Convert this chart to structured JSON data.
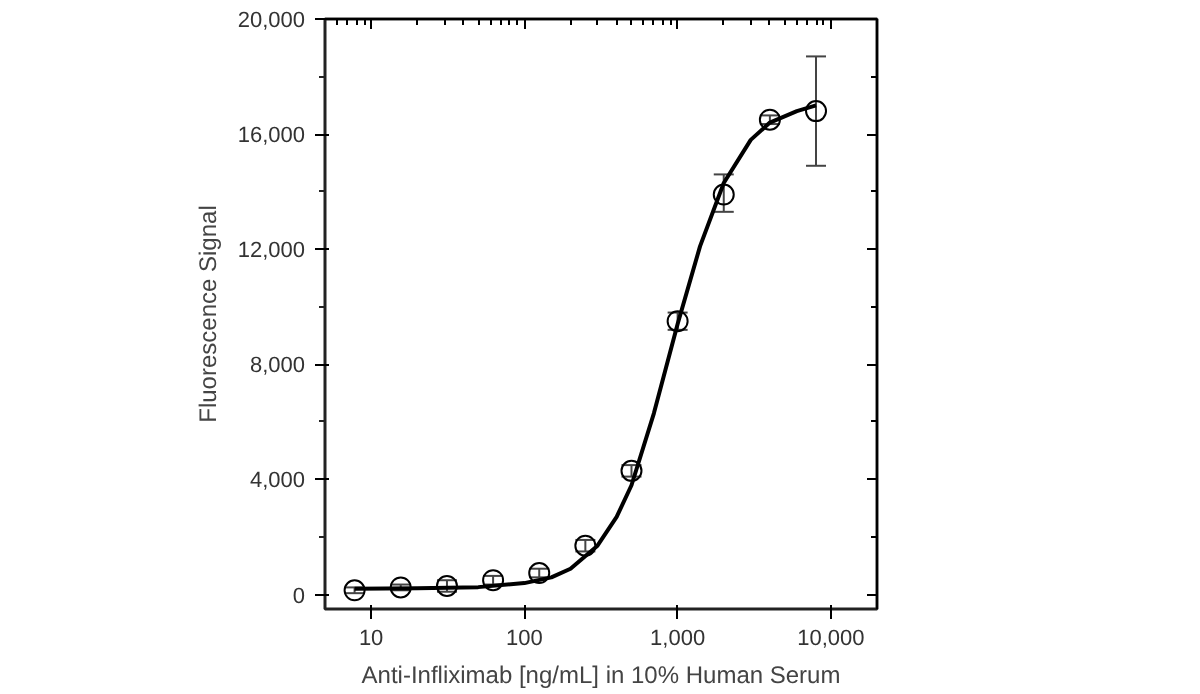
{
  "chart_data": {
    "type": "scatter",
    "xlabel": "Anti-Infliximab [ng/mL] in 10% Human Serum",
    "ylabel": "Fluorescence Signal",
    "log": "x",
    "xlim": [
      5,
      20000
    ],
    "ylim": [
      -500,
      20000
    ],
    "xticks": [
      10,
      100,
      {
        "value": 1000,
        "label": "1,000"
      },
      {
        "value": 10000,
        "label": "10,000"
      }
    ],
    "yticks": [
      0,
      {
        "value": 4000,
        "label": "4,000"
      },
      {
        "value": 8000,
        "label": "8,000"
      },
      {
        "value": 12000,
        "label": "12,000"
      },
      {
        "value": 16000,
        "label": "16,000"
      },
      {
        "value": 20000,
        "label": "20,000"
      }
    ],
    "grid": false,
    "marker": "circle",
    "series": [
      {
        "color": "#000000",
        "x": [
          7.8,
          15.6,
          31.25,
          62.5,
          125,
          250,
          500,
          1000,
          2000,
          4000,
          8000
        ],
        "values": [
          150,
          250,
          300,
          500,
          750,
          1700,
          4300,
          9500,
          13900,
          16500,
          16800
        ],
        "errors": [
          100,
          100,
          200,
          150,
          150,
          200,
          200,
          300,
          [
            13300,
            14600
          ],
          150,
          [
            14900,
            18700
          ]
        ]
      },
      {
        "type": "line",
        "color": "#000000",
        "line_style": "solid",
        "marker": "none",
        "x": [
          7.8,
          20,
          50,
          100,
          150,
          200,
          300,
          400,
          500,
          700,
          1000,
          1400,
          2000,
          3000,
          4000,
          6000,
          8000
        ],
        "values": [
          200,
          220,
          260,
          400,
          600,
          900,
          1700,
          2700,
          3800,
          6300,
          9400,
          12100,
          14300,
          15800,
          16400,
          16800,
          17000
        ]
      }
    ]
  }
}
